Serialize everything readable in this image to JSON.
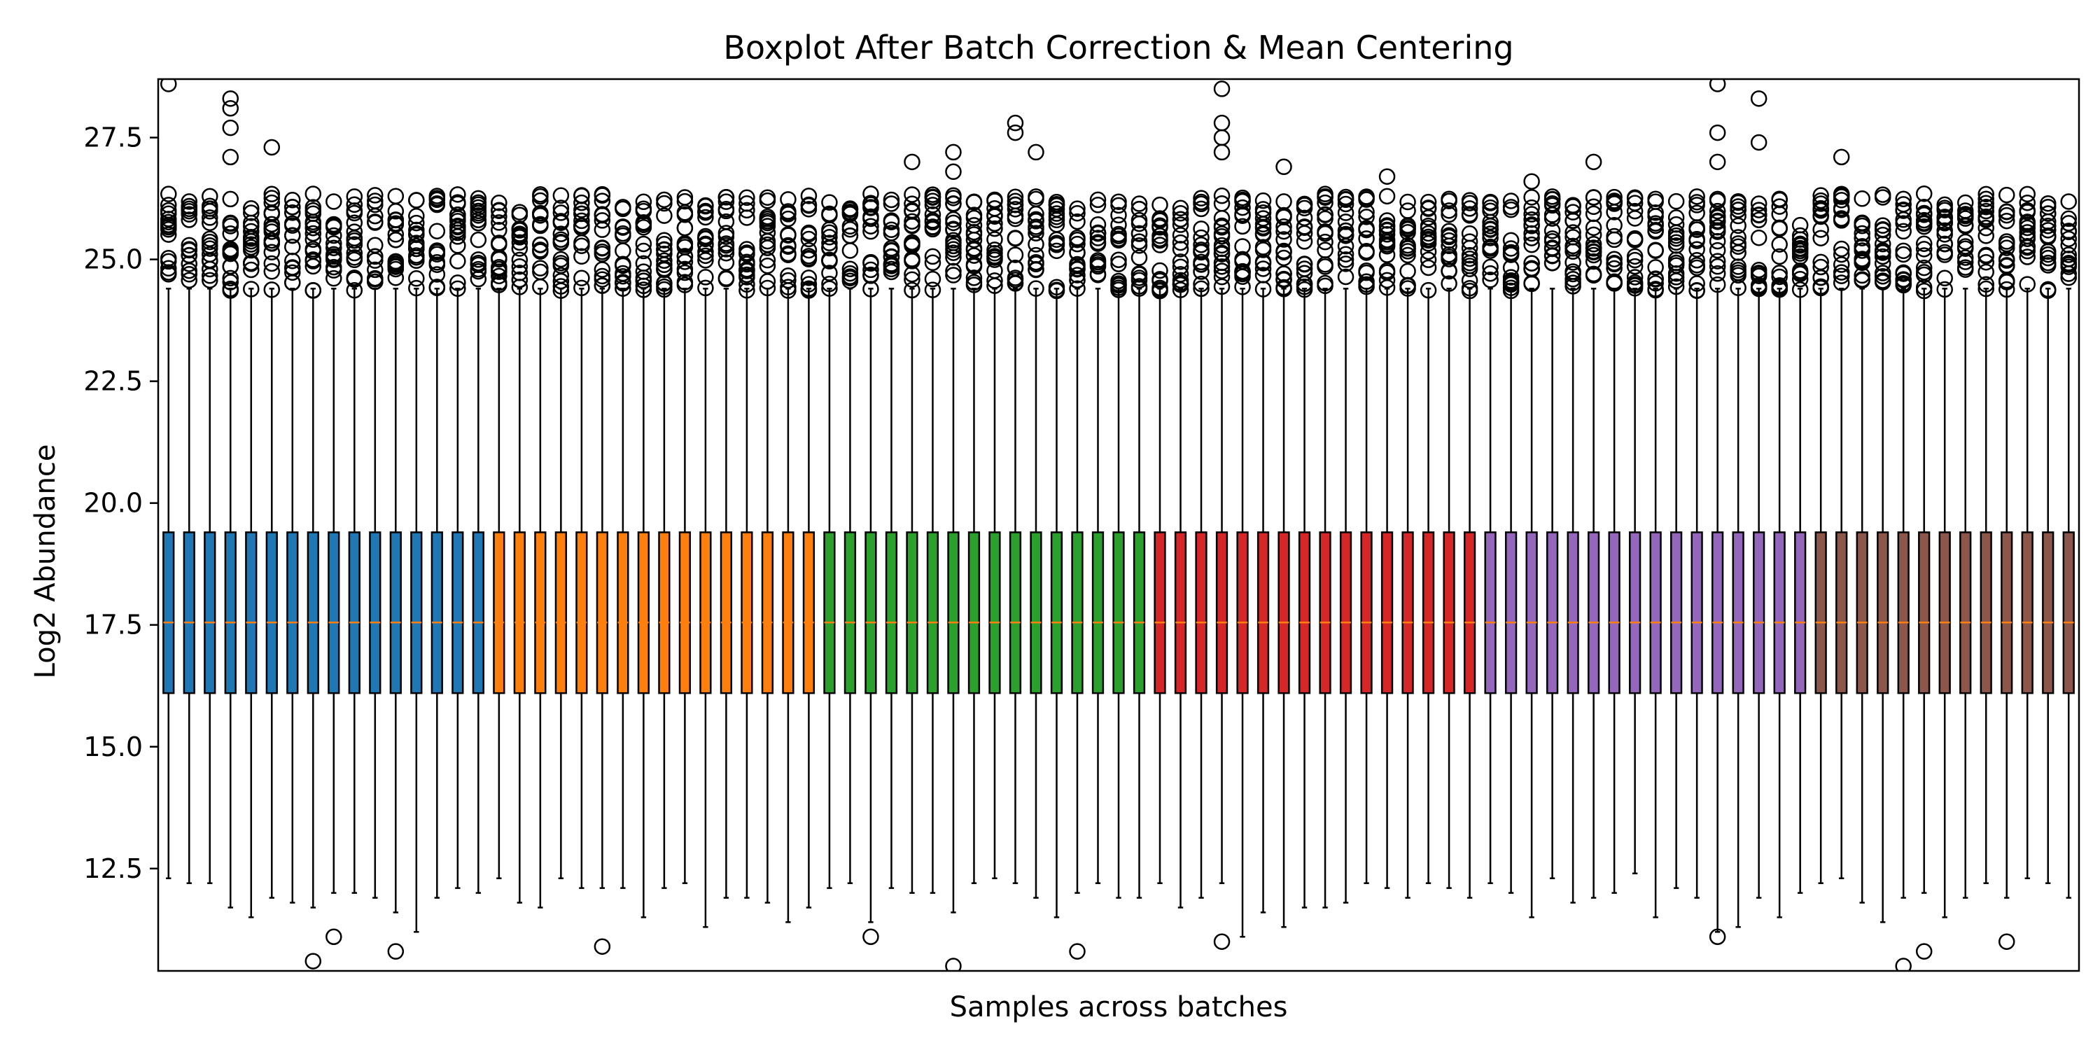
{
  "chart_data": {
    "type": "box",
    "title": "Boxplot After Batch Correction & Mean Centering",
    "xlabel": "Samples across batches",
    "ylabel": "Log2 Abundance",
    "ylim": [
      10.4,
      28.7
    ],
    "yticks": [
      12.5,
      15.0,
      17.5,
      20.0,
      22.5,
      25.0,
      27.5
    ],
    "ytick_labels": [
      "12.5",
      "15.0",
      "17.5",
      "20.0",
      "22.5",
      "25.0",
      "27.5"
    ],
    "grid": false,
    "median_color": "#ff7f0e",
    "box_stats_typical": {
      "q1": 16.1,
      "median": 17.55,
      "q3": 19.4,
      "whisker_high": 24.4
    },
    "batches": [
      {
        "color": "#1f77b4",
        "lower_whiskers": [
          12.3,
          12.2,
          12.2,
          11.7,
          11.5,
          11.9,
          11.8,
          11.7,
          12.0,
          12.0,
          11.9,
          11.6,
          11.2,
          11.9,
          12.1,
          12.0
        ],
        "extreme_outliers": [
          [
            7,
            10.6
          ],
          [
            8,
            11.1
          ],
          [
            11,
            10.8
          ],
          [
            0,
            28.6
          ],
          [
            3,
            28.3
          ],
          [
            3,
            28.1
          ],
          [
            3,
            27.7
          ],
          [
            3,
            27.1
          ],
          [
            5,
            27.3
          ]
        ]
      },
      {
        "color": "#ff7f0e",
        "lower_whiskers": [
          12.3,
          11.8,
          11.7,
          12.3,
          12.1,
          12.1,
          12.1,
          11.5,
          12.1,
          12.2,
          11.3,
          11.9,
          11.9,
          11.8,
          11.4,
          11.7
        ],
        "extreme_outliers": [
          [
            5,
            10.9
          ]
        ]
      },
      {
        "color": "#2ca02c",
        "lower_whiskers": [
          12.1,
          12.2,
          11.4,
          12.1,
          12.0,
          12.0,
          11.6,
          12.2,
          12.3,
          12.2,
          11.9,
          11.5,
          12.0,
          12.2,
          11.9,
          11.9
        ],
        "extreme_outliers": [
          [
            2,
            11.1
          ],
          [
            6,
            10.5
          ],
          [
            12,
            10.8
          ],
          [
            4,
            27.0
          ],
          [
            6,
            27.2
          ],
          [
            6,
            26.8
          ],
          [
            9,
            27.8
          ],
          [
            9,
            27.6
          ],
          [
            10,
            27.2
          ]
        ]
      },
      {
        "color": "#d62728",
        "lower_whiskers": [
          12.2,
          11.7,
          11.9,
          12.2,
          11.1,
          11.6,
          11.3,
          11.7,
          11.7,
          11.8,
          12.2,
          12.1,
          11.9,
          12.2,
          12.1,
          11.9
        ],
        "extreme_outliers": [
          [
            3,
            11.0
          ],
          [
            3,
            28.5
          ],
          [
            3,
            27.8
          ],
          [
            3,
            27.5
          ],
          [
            3,
            27.2
          ],
          [
            6,
            26.9
          ],
          [
            11,
            26.7
          ]
        ]
      },
      {
        "color": "#9467bd",
        "lower_whiskers": [
          12.2,
          12.0,
          11.5,
          12.3,
          11.8,
          11.9,
          12.0,
          12.4,
          11.5,
          12.1,
          11.9,
          11.2,
          11.3,
          11.9,
          11.5,
          12.0
        ],
        "extreme_outliers": [
          [
            2,
            26.6
          ],
          [
            5,
            27.0
          ],
          [
            11,
            11.1
          ],
          [
            11,
            28.6
          ],
          [
            11,
            27.6
          ],
          [
            11,
            27.0
          ],
          [
            13,
            28.3
          ],
          [
            13,
            27.4
          ]
        ]
      },
      {
        "color": "#8c564b",
        "lower_whiskers": [
          12.2,
          12.3,
          11.8,
          11.4,
          11.9,
          12.0,
          11.5,
          11.9,
          12.2,
          11.9,
          12.3,
          12.2,
          11.9
        ],
        "extreme_outliers": [
          [
            1,
            27.1
          ],
          [
            4,
            10.5
          ],
          [
            5,
            10.8
          ],
          [
            9,
            11.0
          ]
        ]
      }
    ]
  }
}
